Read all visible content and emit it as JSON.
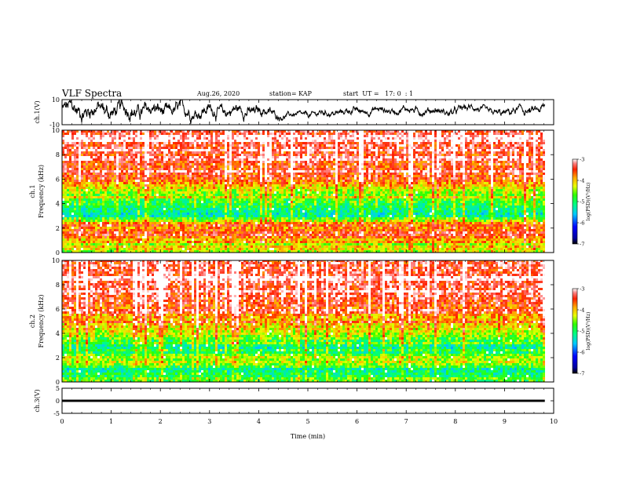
{
  "header": {
    "title": "VLF Spectra",
    "date": "Aug.26, 2020",
    "station": "station= KAP",
    "start": "start  UT =   17: 0  : 1"
  },
  "chart_data": [
    {
      "type": "line",
      "panel": "ch1-waveform",
      "ylabel": "ch.1(V)",
      "ylim": [
        -10,
        10
      ],
      "yticks": [
        "10",
        "-10"
      ],
      "xlim": [
        0,
        10
      ],
      "color": "#000000",
      "envelope": [
        {
          "t": 0.0,
          "y": 2.0,
          "amp": 7.0
        },
        {
          "t": 1.0,
          "y": 1.5,
          "amp": 7.0
        },
        {
          "t": 2.0,
          "y": 1.0,
          "amp": 6.0
        },
        {
          "t": 3.0,
          "y": 1.0,
          "amp": 5.5
        },
        {
          "t": 4.0,
          "y": 1.0,
          "amp": 5.0
        },
        {
          "t": 4.5,
          "y": -3.0,
          "amp": 2.5
        },
        {
          "t": 5.0,
          "y": -2.0,
          "amp": 2.5
        },
        {
          "t": 6.0,
          "y": 1.0,
          "amp": 3.0
        },
        {
          "t": 7.0,
          "y": 2.0,
          "amp": 3.0
        },
        {
          "t": 8.0,
          "y": 0.0,
          "amp": 3.5
        },
        {
          "t": 8.4,
          "y": 5.0,
          "amp": 3.0
        },
        {
          "t": 8.7,
          "y": -2.0,
          "amp": 3.0
        },
        {
          "t": 9.0,
          "y": 0.0,
          "amp": 3.5
        },
        {
          "t": 9.8,
          "y": 2.0,
          "amp": 4.0
        }
      ]
    },
    {
      "type": "heatmap",
      "panel": "ch1-spectrogram",
      "ylabel": "ch.1\nFrequency  (kHz)",
      "ylim": [
        0,
        10
      ],
      "yticks": [
        "0",
        "2",
        "4",
        "6",
        "8",
        "10"
      ],
      "xlim": [
        0,
        10
      ],
      "data_xmax": 9.82,
      "colorbar": {
        "label": "log(PSD)(V²/Hz)",
        "range": [
          -7,
          -3
        ],
        "ticks": [
          "-3",
          "-4",
          "-5",
          "-6",
          "-7"
        ]
      },
      "profile": [
        {
          "f": 0.0,
          "v": -5.0
        },
        {
          "f": 0.3,
          "v": -4.6
        },
        {
          "f": 0.8,
          "v": -4.4
        },
        {
          "f": 1.5,
          "v": -3.4
        },
        {
          "f": 2.2,
          "v": -4.0
        },
        {
          "f": 2.7,
          "v": -4.6
        },
        {
          "f": 3.0,
          "v": -5.3
        },
        {
          "f": 3.6,
          "v": -5.1
        },
        {
          "f": 4.2,
          "v": -4.8
        },
        {
          "f": 5.0,
          "v": -4.5
        },
        {
          "f": 6.0,
          "v": -3.6
        },
        {
          "f": 7.0,
          "v": -3.6
        },
        {
          "f": 8.0,
          "v": -3.5
        },
        {
          "f": 9.0,
          "v": -3.4
        },
        {
          "f": 10.0,
          "v": -3.4
        }
      ]
    },
    {
      "type": "heatmap",
      "panel": "ch2-spectrogram",
      "ylabel": "ch.2\nFrequency  (kHz)",
      "ylim": [
        0,
        10
      ],
      "yticks": [
        "0",
        "2",
        "4",
        "6",
        "8",
        "10"
      ],
      "xlim": [
        0,
        10
      ],
      "data_xmax": 9.82,
      "colorbar": {
        "label": "log(PSD)(V²/Hz)",
        "range": [
          -7,
          -3
        ],
        "ticks": [
          "-3",
          "-4",
          "-5",
          "-6",
          "-7"
        ]
      },
      "profile": [
        {
          "f": 0.0,
          "v": -5.2
        },
        {
          "f": 0.5,
          "v": -5.0
        },
        {
          "f": 1.2,
          "v": -5.3
        },
        {
          "f": 2.0,
          "v": -4.4
        },
        {
          "f": 2.6,
          "v": -5.3
        },
        {
          "f": 3.2,
          "v": -5.1
        },
        {
          "f": 3.8,
          "v": -4.5
        },
        {
          "f": 4.5,
          "v": -4.2
        },
        {
          "f": 5.5,
          "v": -4.0
        },
        {
          "f": 6.5,
          "v": -3.5
        },
        {
          "f": 8.0,
          "v": -3.4
        },
        {
          "f": 10.0,
          "v": -3.4
        }
      ]
    },
    {
      "type": "line",
      "panel": "ch3-waveform",
      "ylabel": "ch.3(V)",
      "ylim": [
        -5,
        5
      ],
      "yticks": [
        "5",
        "0",
        "-5"
      ],
      "xlim": [
        0,
        10
      ],
      "xlabel": "Time  (min)",
      "xticks": [
        "0",
        "1",
        "2",
        "3",
        "4",
        "5",
        "6",
        "7",
        "8",
        "9",
        "10"
      ],
      "data_xmax": 9.82,
      "level": 0.0,
      "band": 0.45,
      "color": "#000000"
    }
  ]
}
